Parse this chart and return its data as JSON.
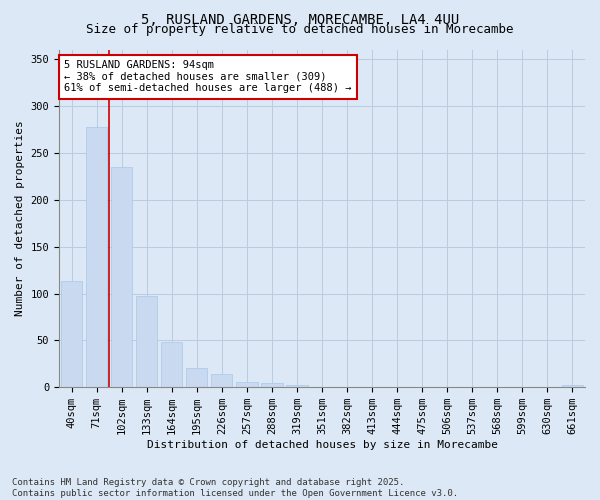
{
  "title1": "5, RUSLAND GARDENS, MORECAMBE, LA4 4UU",
  "title2": "Size of property relative to detached houses in Morecambe",
  "xlabel": "Distribution of detached houses by size in Morecambe",
  "ylabel": "Number of detached properties",
  "categories": [
    "40sqm",
    "71sqm",
    "102sqm",
    "133sqm",
    "164sqm",
    "195sqm",
    "226sqm",
    "257sqm",
    "288sqm",
    "319sqm",
    "351sqm",
    "382sqm",
    "413sqm",
    "444sqm",
    "475sqm",
    "506sqm",
    "537sqm",
    "568sqm",
    "599sqm",
    "630sqm",
    "661sqm"
  ],
  "values": [
    113,
    278,
    235,
    97,
    48,
    20,
    14,
    6,
    5,
    2,
    0,
    0,
    0,
    0,
    0,
    0,
    0,
    0,
    0,
    0,
    2
  ],
  "bar_color": "#c9daf0",
  "bar_edge_color": "#a8c8e8",
  "grid_color": "#b8cce0",
  "background_color": "#dce8f5",
  "ylim": [
    0,
    360
  ],
  "yticks": [
    0,
    50,
    100,
    150,
    200,
    250,
    300,
    350
  ],
  "annotation_text": "5 RUSLAND GARDENS: 94sqm\n← 38% of detached houses are smaller (309)\n61% of semi-detached houses are larger (488) →",
  "annotation_box_color": "#ffffff",
  "annotation_box_edge_color": "#cc0000",
  "footer": "Contains HM Land Registry data © Crown copyright and database right 2025.\nContains public sector information licensed under the Open Government Licence v3.0.",
  "title1_fontsize": 10,
  "title2_fontsize": 9,
  "xlabel_fontsize": 8,
  "ylabel_fontsize": 8,
  "annotation_fontsize": 7.5,
  "footer_fontsize": 6.5,
  "tick_fontsize": 7.5
}
